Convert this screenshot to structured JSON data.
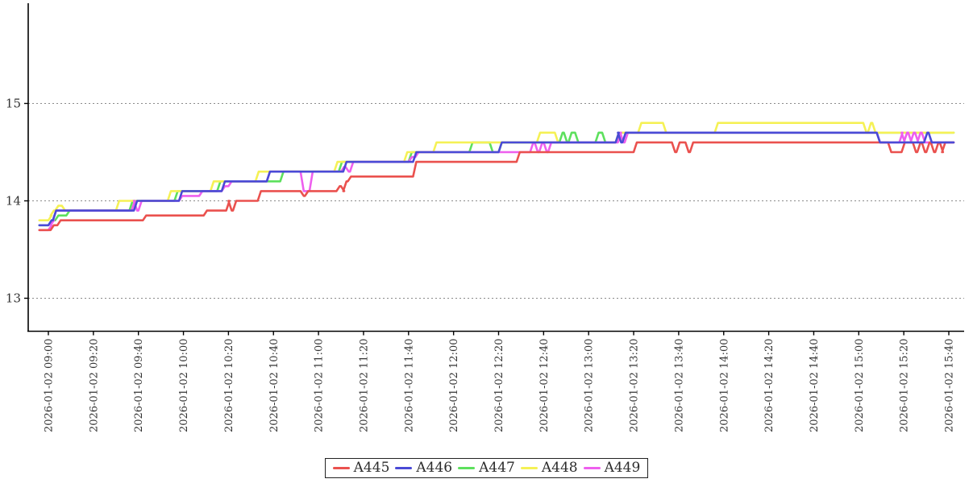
{
  "chart_data": {
    "type": "line",
    "title": "",
    "xlabel": "",
    "ylabel": "",
    "grid": "horizontal-dotted",
    "legend_position": "bottom-center",
    "y_ticks": [
      13,
      14,
      15
    ],
    "ylim": [
      12.66,
      16.02
    ],
    "x_unit": "minutes after 2026-01-02 09:00",
    "xlim_minutes": [
      -5,
      402
    ],
    "x_tick_minutes": [
      0,
      20,
      40,
      60,
      80,
      100,
      120,
      140,
      160,
      180,
      200,
      220,
      240,
      260,
      280,
      300,
      320,
      340,
      360,
      380,
      400
    ],
    "x_tick_labels": [
      "2026-01-02 09:00",
      "2026-01-02 09:20",
      "2026-01-02 09:40",
      "2026-01-02 10:00",
      "2026-01-02 10:20",
      "2026-01-02 10:40",
      "2026-01-02 11:00",
      "2026-01-02 11:20",
      "2026-01-02 11:40",
      "2026-01-02 12:00",
      "2026-01-02 12:20",
      "2026-01-02 12:40",
      "2026-01-02 13:00",
      "2026-01-02 13:20",
      "2026-01-02 13:40",
      "2026-01-02 14:00",
      "2026-01-02 14:20",
      "2026-01-02 14:40",
      "2026-01-02 15:00",
      "2026-01-02 15:20",
      "2026-01-02 15:40"
    ],
    "draw_order": [
      "A447",
      "A448",
      "A449",
      "A445",
      "A446"
    ],
    "series": [
      {
        "name": "A445",
        "color": "#ea514e",
        "points": [
          [
            -4,
            13.7
          ],
          [
            1,
            13.75
          ],
          [
            4,
            13.8
          ],
          [
            42,
            13.85
          ],
          [
            69,
            13.9
          ],
          [
            79,
            14.0
          ],
          [
            80,
            13.9
          ],
          [
            82,
            14.0
          ],
          [
            93,
            14.1
          ],
          [
            112,
            14.05
          ],
          [
            114,
            14.1
          ],
          [
            128,
            14.15
          ],
          [
            130,
            14.1
          ],
          [
            131,
            14.2
          ],
          [
            133,
            14.25
          ],
          [
            162,
            14.4
          ],
          [
            208,
            14.5
          ],
          [
            260,
            14.6
          ],
          [
            277,
            14.5
          ],
          [
            279,
            14.6
          ],
          [
            283,
            14.5
          ],
          [
            285,
            14.6
          ],
          [
            373,
            14.5
          ],
          [
            379,
            14.6
          ],
          [
            384,
            14.5
          ],
          [
            386,
            14.6
          ],
          [
            388,
            14.5
          ],
          [
            390,
            14.6
          ],
          [
            392,
            14.5
          ],
          [
            394,
            14.6
          ],
          [
            396,
            14.5
          ],
          [
            397,
            14.6
          ]
        ]
      },
      {
        "name": "A446",
        "color": "#4a4ad6",
        "points": [
          [
            -4,
            13.75
          ],
          [
            0,
            13.8
          ],
          [
            2,
            13.9
          ],
          [
            38,
            14.0
          ],
          [
            58,
            14.1
          ],
          [
            77,
            14.2
          ],
          [
            97,
            14.3
          ],
          [
            131,
            14.4
          ],
          [
            162,
            14.5
          ],
          [
            200,
            14.6
          ],
          [
            252,
            14.7
          ],
          [
            253,
            14.6
          ],
          [
            255,
            14.7
          ],
          [
            368,
            14.6
          ],
          [
            389,
            14.7
          ],
          [
            391,
            14.6
          ]
        ]
      },
      {
        "name": "A447",
        "color": "#5de05d",
        "points": [
          [
            -4,
            13.75
          ],
          [
            0,
            13.8
          ],
          [
            3,
            13.85
          ],
          [
            8,
            13.9
          ],
          [
            36,
            14.0
          ],
          [
            56,
            14.1
          ],
          [
            75,
            14.2
          ],
          [
            103,
            14.3
          ],
          [
            129,
            14.4
          ],
          [
            160,
            14.5
          ],
          [
            187,
            14.6
          ],
          [
            196,
            14.5
          ],
          [
            200,
            14.6
          ],
          [
            227,
            14.7
          ],
          [
            229,
            14.6
          ],
          [
            231,
            14.7
          ],
          [
            234,
            14.6
          ],
          [
            243,
            14.7
          ],
          [
            246,
            14.6
          ],
          [
            252,
            14.7
          ]
        ]
      },
      {
        "name": "A448",
        "color": "#f5f155",
        "points": [
          [
            -4,
            13.8
          ],
          [
            0,
            13.85
          ],
          [
            1,
            13.9
          ],
          [
            3,
            13.95
          ],
          [
            6,
            13.9
          ],
          [
            30,
            14.0
          ],
          [
            53,
            14.1
          ],
          [
            72,
            14.2
          ],
          [
            92,
            14.3
          ],
          [
            127,
            14.4
          ],
          [
            158,
            14.5
          ],
          [
            171,
            14.6
          ],
          [
            217,
            14.7
          ],
          [
            225,
            14.6
          ],
          [
            252,
            14.7
          ],
          [
            262,
            14.8
          ],
          [
            273,
            14.7
          ],
          [
            296,
            14.8
          ],
          [
            362,
            14.7
          ],
          [
            364,
            14.8
          ],
          [
            366,
            14.7
          ]
        ]
      },
      {
        "name": "A449",
        "color": "#ee5fee",
        "points": [
          [
            -4,
            13.7
          ],
          [
            0,
            13.75
          ],
          [
            1,
            13.8
          ],
          [
            2,
            13.9
          ],
          [
            37,
            14.0
          ],
          [
            38,
            13.9
          ],
          [
            40,
            14.0
          ],
          [
            58,
            14.05
          ],
          [
            67,
            14.1
          ],
          [
            77,
            14.15
          ],
          [
            80,
            14.2
          ],
          [
            97,
            14.3
          ],
          [
            112,
            14.1
          ],
          [
            116,
            14.3
          ],
          [
            130,
            14.35
          ],
          [
            132,
            14.3
          ],
          [
            134,
            14.4
          ],
          [
            160,
            14.45
          ],
          [
            163,
            14.5
          ],
          [
            214,
            14.6
          ],
          [
            216,
            14.5
          ],
          [
            218,
            14.6
          ],
          [
            220,
            14.5
          ],
          [
            222,
            14.6
          ],
          [
            253,
            14.7
          ],
          [
            254,
            14.6
          ],
          [
            256,
            14.7
          ],
          [
            368,
            14.6
          ],
          [
            378,
            14.7
          ],
          [
            379,
            14.6
          ],
          [
            380,
            14.7
          ],
          [
            382,
            14.6
          ],
          [
            383,
            14.7
          ],
          [
            385,
            14.6
          ],
          [
            386,
            14.7
          ],
          [
            388,
            14.6
          ]
        ]
      }
    ]
  },
  "legend": {
    "items": [
      {
        "label": "A445",
        "color": "#ea514e"
      },
      {
        "label": "A446",
        "color": "#4a4ad6"
      },
      {
        "label": "A447",
        "color": "#5de05d"
      },
      {
        "label": "A448",
        "color": "#f5f155"
      },
      {
        "label": "A449",
        "color": "#ee5fee"
      }
    ]
  }
}
